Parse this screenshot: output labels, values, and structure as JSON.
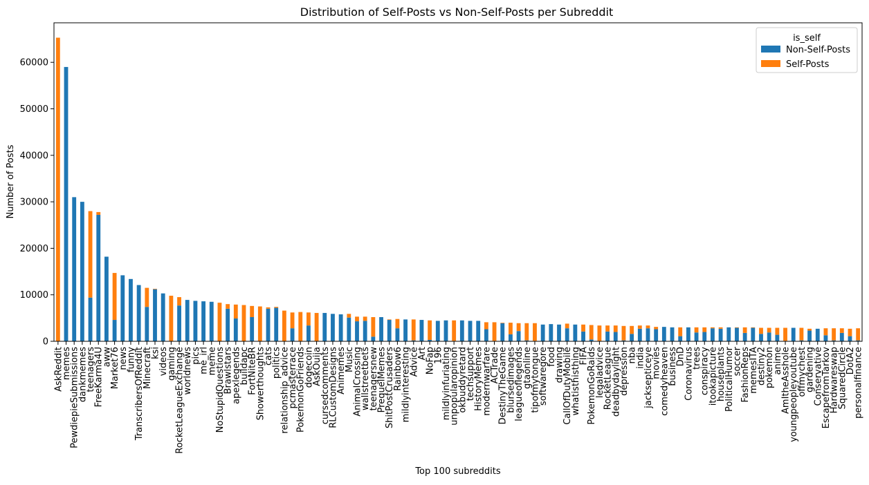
{
  "chart_data": {
    "type": "bar",
    "stacked": true,
    "title": "Distribution of Self-Posts vs Non-Self-Posts per Subreddit",
    "xlabel": "Top 100 subreddits",
    "ylabel": "Number of Posts",
    "ylim": [
      0,
      68500
    ],
    "yticks": [
      0,
      10000,
      20000,
      30000,
      40000,
      50000,
      60000
    ],
    "grid": false,
    "legend": {
      "title": "is_self",
      "placement": "top-right"
    },
    "categories": [
      "AskReddit",
      "memes",
      "PewdiepieSubmissions",
      "dankmemes",
      "teenagers",
      "FreeKarma4U",
      "aww",
      "Market76",
      "news",
      "funny",
      "TranscribersOfReddit",
      "Minecraft",
      "ksi",
      "videos",
      "gaming",
      "RocketLeagueExchange",
      "worldnews",
      "pics",
      "me_irl",
      "meme",
      "NoStupidQuestions",
      "Brawlstars",
      "apexlegends",
      "buildapc",
      "FortNiteBR",
      "Showerthoughts",
      "cats",
      "politics",
      "relationship_advice",
      "pcmasterrace",
      "PokemonGoFriends",
      "dogecoin",
      "AskOuija",
      "cursedcomments",
      "RLCustomDesigns",
      "Animemes",
      "Music",
      "AnimalCrossing",
      "wallstreetbets",
      "teenagersnew",
      "PrequelMemes",
      "ShitPostCrusaders",
      "Rainbow6",
      "mildlyinteresting",
      "Advice",
      "Art",
      "NoFap",
      "196",
      "mildlyinfuriating",
      "unpopularopinion",
      "okbuddyretard",
      "techsupport",
      "HistoryMemes",
      "modernwarfare",
      "ACTrade",
      "DestinyTheGame",
      "blursedimages",
      "leagueoflegends",
      "gtaonline",
      "tipofmytongue",
      "softwaregore",
      "food",
      "drawing",
      "CallOfDutyMobile",
      "whatisthisthing",
      "FIFA",
      "PokemonGoRaids",
      "legaladvice",
      "RocketLeague",
      "deadbydaylight",
      "depression",
      "nba",
      "india",
      "jacksepticeye",
      "movies",
      "comedyheaven",
      "business",
      "DnD",
      "Coronavirus",
      "trees",
      "conspiracy",
      "itookapicture",
      "houseplants",
      "PoliticalHumor",
      "soccer",
      "FashionReps",
      "memesITA",
      "destiny2",
      "pokemon",
      "anime",
      "AmItheAsshole",
      "youngpeopleyoutube",
      "offmychest",
      "gardening",
      "Conservative",
      "EscapefromTarkov",
      "Hardwareswap",
      "SquaredCircle",
      "DotA2",
      "personalfinance"
    ],
    "series": [
      {
        "name": "Non-Self-Posts",
        "color": "#1f77b4",
        "values": [
          0,
          59000,
          31000,
          30000,
          9400,
          27200,
          18200,
          4600,
          14200,
          13400,
          12100,
          7400,
          11200,
          10300,
          0,
          7700,
          8900,
          8700,
          8600,
          8500,
          0,
          7000,
          4900,
          0,
          5200,
          0,
          7000,
          7200,
          0,
          2800,
          0,
          3400,
          0,
          6100,
          5900,
          5800,
          5100,
          4300,
          4400,
          1000,
          5200,
          4600,
          2800,
          4700,
          200,
          4600,
          300,
          4400,
          4500,
          100,
          4500,
          4400,
          4400,
          2600,
          100,
          3900,
          1500,
          2200,
          200,
          100,
          3600,
          3700,
          3600,
          2800,
          3600,
          2100,
          400,
          100,
          2100,
          2000,
          200,
          1600,
          2700,
          2800,
          2600,
          3100,
          3000,
          1100,
          3000,
          1900,
          2000,
          2800,
          2700,
          3000,
          2900,
          1800,
          2900,
          1600,
          1900,
          1400,
          100,
          2900,
          200,
          2300,
          2700,
          1300,
          200,
          1800,
          1100,
          200
        ]
      },
      {
        "name": "Self-Posts",
        "color": "#ff7f0e",
        "values": [
          65300,
          0,
          0,
          0,
          18600,
          600,
          0,
          10100,
          0,
          0,
          0,
          4100,
          100,
          0,
          9800,
          1800,
          0,
          0,
          0,
          0,
          8300,
          1000,
          3000,
          7800,
          2400,
          7500,
          300,
          200,
          6600,
          3400,
          6300,
          2800,
          6100,
          0,
          0,
          0,
          800,
          1000,
          900,
          4200,
          0,
          100,
          2000,
          0,
          4500,
          0,
          4200,
          0,
          0,
          4400,
          0,
          0,
          0,
          1500,
          4000,
          100,
          2500,
          1700,
          3700,
          3800,
          0,
          0,
          0,
          1000,
          0,
          1500,
          3100,
          3300,
          1300,
          1400,
          3100,
          1700,
          700,
          600,
          500,
          0,
          0,
          1900,
          0,
          1100,
          1000,
          200,
          300,
          0,
          100,
          1200,
          100,
          1300,
          1000,
          1500,
          2800,
          0,
          2700,
          400,
          0,
          1500,
          2600,
          1000,
          1600,
          2600
        ]
      }
    ]
  }
}
